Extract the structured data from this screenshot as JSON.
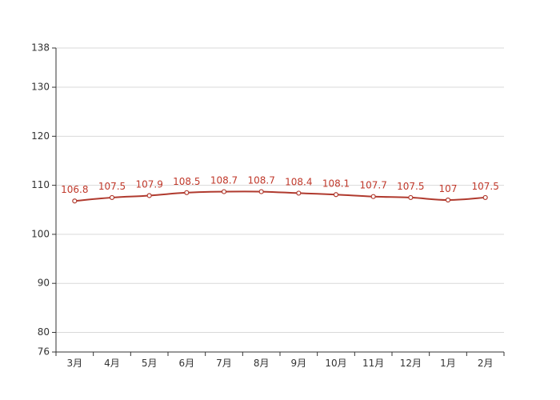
{
  "colors": {
    "background": "#ffffff",
    "series_line": "#b03a2e",
    "data_label": "#c0392b",
    "point_fill": "#ffffff",
    "grid": "#d9d9d9",
    "axis": "#333333",
    "tick_text": "#333333"
  },
  "chart_data": {
    "type": "line",
    "title": "",
    "xlabel": "",
    "ylabel": "",
    "grid": true,
    "legend": "none",
    "categories": [
      "3月",
      "4月",
      "5月",
      "6月",
      "7月",
      "8月",
      "9月",
      "10月",
      "11月",
      "12月",
      "1月",
      "2月"
    ],
    "series": [
      {
        "values": [
          106.8,
          107.5,
          107.9,
          108.5,
          108.7,
          108.7,
          108.4,
          108.1,
          107.7,
          107.5,
          107,
          107.5
        ],
        "value_labels": [
          "106.8",
          "107.5",
          "107.9",
          "108.5",
          "108.7",
          "108.7",
          "108.4",
          "108.1",
          "107.7",
          "107.5",
          "107",
          "107.5"
        ]
      }
    ],
    "ylim": [
      76,
      138
    ],
    "yticks": [
      76,
      80,
      90,
      100,
      110,
      120,
      130,
      138
    ]
  }
}
